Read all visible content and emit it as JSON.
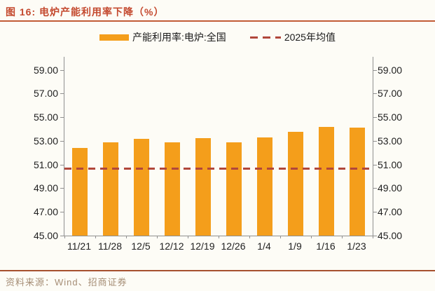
{
  "header": {
    "title": "图 16: 电炉产能利用率下降（%）"
  },
  "footer": {
    "source": "资料来源：Wind、招商证券"
  },
  "chart_data": {
    "type": "bar",
    "title": "电炉产能利用率下降（%）",
    "categories": [
      "11/21",
      "11/28",
      "12/5",
      "12/12",
      "12/19",
      "12/26",
      "1/4",
      "1/9",
      "1/16",
      "1/23"
    ],
    "series": [
      {
        "name": "产能利用率:电炉:全国",
        "values": [
          52.4,
          52.9,
          53.2,
          52.85,
          53.25,
          52.9,
          53.3,
          53.75,
          54.2,
          54.1
        ]
      }
    ],
    "avg_line": {
      "name": "2025年均值",
      "value": 50.65
    },
    "ylim": [
      45,
      60.1
    ],
    "yticks": [
      45,
      47,
      49,
      51,
      53,
      55,
      57,
      59
    ],
    "ytick_decimals": 2,
    "grid": false,
    "legend_position": "top",
    "colors": {
      "bar": "#F49E1B",
      "avg_line": "#B1473B",
      "title": "#C4492E",
      "axis": "#909090",
      "header_rule": "#C25C36",
      "footer_rule": "#A6512F",
      "source_text": "#A68E76"
    }
  }
}
